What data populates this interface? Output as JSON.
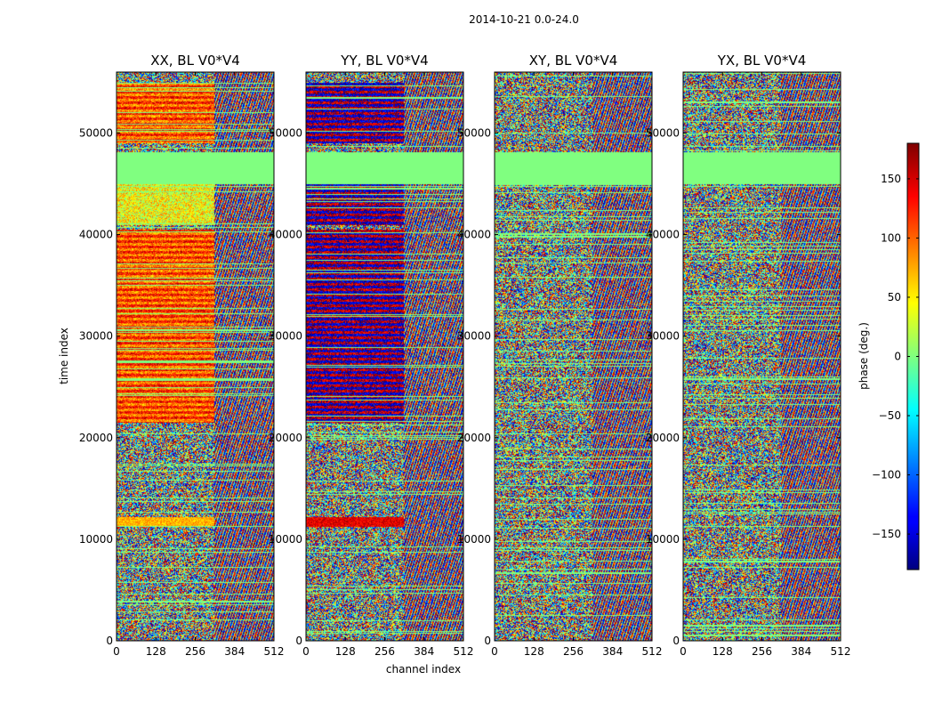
{
  "suptitle": "2014-10-21 0.0-24.0",
  "colors": {
    "colormap": "jet",
    "flagged_fill": "#7fff7f",
    "axis_frame": "#000000"
  },
  "chart_data": {
    "type": "heatmap",
    "xlabel": "channel index",
    "ylabel": "time index",
    "x_range": [
      0,
      512
    ],
    "y_range": [
      0,
      56000
    ],
    "x_ticks": [
      0,
      128,
      256,
      384,
      512
    ],
    "y_ticks": [
      0,
      10000,
      20000,
      30000,
      40000,
      50000
    ],
    "colorbar": {
      "label": "phase (deg.)",
      "range": [
        -180,
        180
      ],
      "ticks": [
        -150,
        -100,
        -50,
        0,
        50,
        100,
        150
      ],
      "tick_labels": [
        "−150",
        "−100",
        "−50",
        "0",
        "50",
        "100",
        "150"
      ]
    },
    "flagged_time_ranges": [
      [
        45000,
        48200
      ]
    ],
    "panels": [
      {
        "title": "XX, BL V0*V4",
        "polarization": "XX"
      },
      {
        "title": "YY, BL V0*V4",
        "polarization": "YY"
      },
      {
        "title": "XY, BL V0*V4",
        "polarization": "XY"
      },
      {
        "title": "YX, BL V0*V4",
        "polarization": "YX"
      }
    ]
  }
}
